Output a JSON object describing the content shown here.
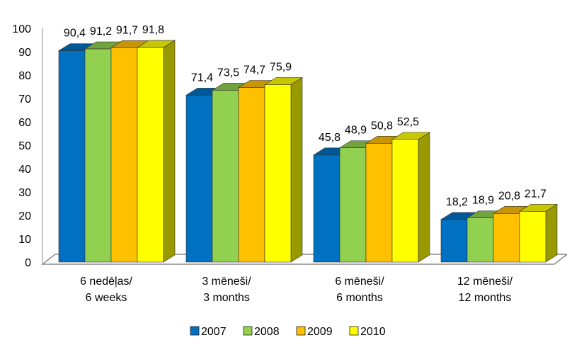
{
  "chart_data": {
    "type": "bar",
    "title": "",
    "xlabel": "",
    "ylabel": "",
    "ylim": [
      0,
      100
    ],
    "yticks": [
      "0",
      "10",
      "20",
      "30",
      "40",
      "50",
      "60",
      "70",
      "80",
      "90",
      "100"
    ],
    "categories": [
      [
        "6 nedēļas/",
        "6 weeks"
      ],
      [
        "3 mēneši/",
        "3 months"
      ],
      [
        "6 mēneši/",
        "6 months"
      ],
      [
        "12 mēneši/",
        "12 months"
      ]
    ],
    "series": [
      {
        "name": "2007",
        "color": "#0070C0",
        "values": [
          90.4,
          71.4,
          45.8,
          18.2
        ],
        "labels": [
          "90,4",
          "71,4",
          "45,8",
          "18,2"
        ]
      },
      {
        "name": "2008",
        "color": "#92D050",
        "values": [
          91.2,
          73.5,
          48.9,
          18.9
        ],
        "labels": [
          "91,2",
          "73,5",
          "48,9",
          "18,9"
        ]
      },
      {
        "name": "2009",
        "color": "#FFC000",
        "values": [
          91.7,
          74.7,
          50.8,
          20.8
        ],
        "labels": [
          "91,7",
          "74,7",
          "50,8",
          "20,8"
        ]
      },
      {
        "name": "2010",
        "color": "#FFFF00",
        "values": [
          91.8,
          75.9,
          52.5,
          21.7
        ],
        "labels": [
          "91,8",
          "75,9",
          "52,5",
          "21,7"
        ]
      }
    ],
    "legend_position": "bottom",
    "grid": false,
    "style": "3d-clustered-column"
  }
}
